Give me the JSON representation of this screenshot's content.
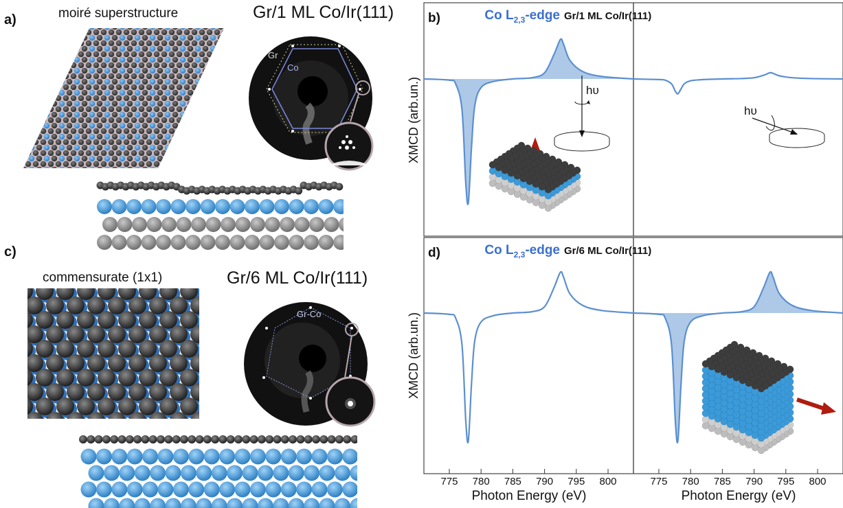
{
  "panels": {
    "a": {
      "letter": "a)",
      "caption": "moiré superstructure",
      "title": "Gr/1 ML Co/Ir(111)",
      "leed_labels": [
        "Gr",
        "Co"
      ]
    },
    "b": {
      "letter": "b)",
      "edge": "Co L",
      "edge_sub": "2,3",
      "edge_suffix": "-edge",
      "sample": "Gr/1 ML Co/Ir(111)"
    },
    "c": {
      "letter": "c)",
      "caption": "commensurate (1x1)",
      "title": "Gr/6 ML Co/Ir(111)",
      "leed_labels": [
        "Gr-Co"
      ]
    },
    "d": {
      "letter": "d)",
      "edge": "Co L",
      "edge_sub": "2,3",
      "edge_suffix": "-edge",
      "sample": "Gr/6 ML Co/Ir(111)"
    }
  },
  "photon_label": "hυ",
  "colors": {
    "curve": "#5b8fd0",
    "fill": "#9fbfe3",
    "title_blue": "#3a6fd0",
    "arrow": "#b01c10",
    "co_atom": "#3b8ed6",
    "gr_atom": "#3a3a3a",
    "ir_atom": "#9a9a9a"
  },
  "chart_data": [
    {
      "type": "line",
      "panel": "b-left",
      "ylabel": "XMCD (arb.un.)",
      "xlim": [
        771,
        804
      ],
      "x": [
        771,
        775,
        776,
        777,
        777.6,
        778,
        778.5,
        779,
        780,
        782,
        785,
        788,
        790,
        791.5,
        792.5,
        793,
        794,
        796,
        799,
        804
      ],
      "y": [
        0,
        -0.01,
        -0.04,
        -0.25,
        -0.85,
        -1.0,
        -0.55,
        -0.22,
        -0.07,
        -0.02,
        0,
        0.01,
        0.05,
        0.2,
        0.32,
        0.28,
        0.15,
        0.06,
        0.02,
        0
      ],
      "filled": true
    },
    {
      "type": "line",
      "panel": "b-right",
      "xlim": [
        771,
        804
      ],
      "x": [
        771,
        775,
        776,
        777,
        777.6,
        778,
        778.5,
        779,
        780,
        782,
        785,
        788,
        790,
        791.5,
        792.5,
        793,
        794,
        796,
        799,
        804
      ],
      "y": [
        0,
        -0.005,
        -0.01,
        -0.04,
        -0.1,
        -0.12,
        -0.08,
        -0.04,
        -0.015,
        -0.005,
        0,
        0.003,
        0.01,
        0.03,
        0.05,
        0.045,
        0.025,
        0.01,
        0.003,
        0
      ],
      "filled": false
    },
    {
      "type": "line",
      "panel": "d-left",
      "ylabel": "XMCD (arb.un.)",
      "xlabel": "Photon Energy (eV)",
      "xlim": [
        771,
        804
      ],
      "xticks": [
        775,
        780,
        785,
        790,
        795,
        800
      ],
      "x": [
        771,
        775,
        776,
        777,
        777.6,
        778,
        778.5,
        779,
        780,
        782,
        785,
        788,
        790,
        791.5,
        792.5,
        793,
        794,
        796,
        799,
        804
      ],
      "y": [
        0,
        -0.01,
        -0.04,
        -0.25,
        -0.85,
        -1.0,
        -0.55,
        -0.22,
        -0.07,
        -0.02,
        0,
        0.01,
        0.05,
        0.2,
        0.32,
        0.28,
        0.15,
        0.06,
        0.02,
        0
      ],
      "filled": false
    },
    {
      "type": "line",
      "panel": "d-right",
      "xlabel": "Photon Energy (eV)",
      "xlim": [
        771,
        804
      ],
      "xticks": [
        775,
        780,
        785,
        790,
        795,
        800
      ],
      "x": [
        771,
        775,
        776,
        777,
        777.6,
        778,
        778.5,
        779,
        780,
        782,
        785,
        788,
        790,
        791.5,
        792.5,
        793,
        794,
        796,
        799,
        804
      ],
      "y": [
        0,
        -0.01,
        -0.04,
        -0.25,
        -0.85,
        -1.0,
        -0.55,
        -0.22,
        -0.07,
        -0.02,
        0,
        0.01,
        0.05,
        0.2,
        0.32,
        0.28,
        0.15,
        0.06,
        0.02,
        0
      ],
      "filled": true
    }
  ]
}
